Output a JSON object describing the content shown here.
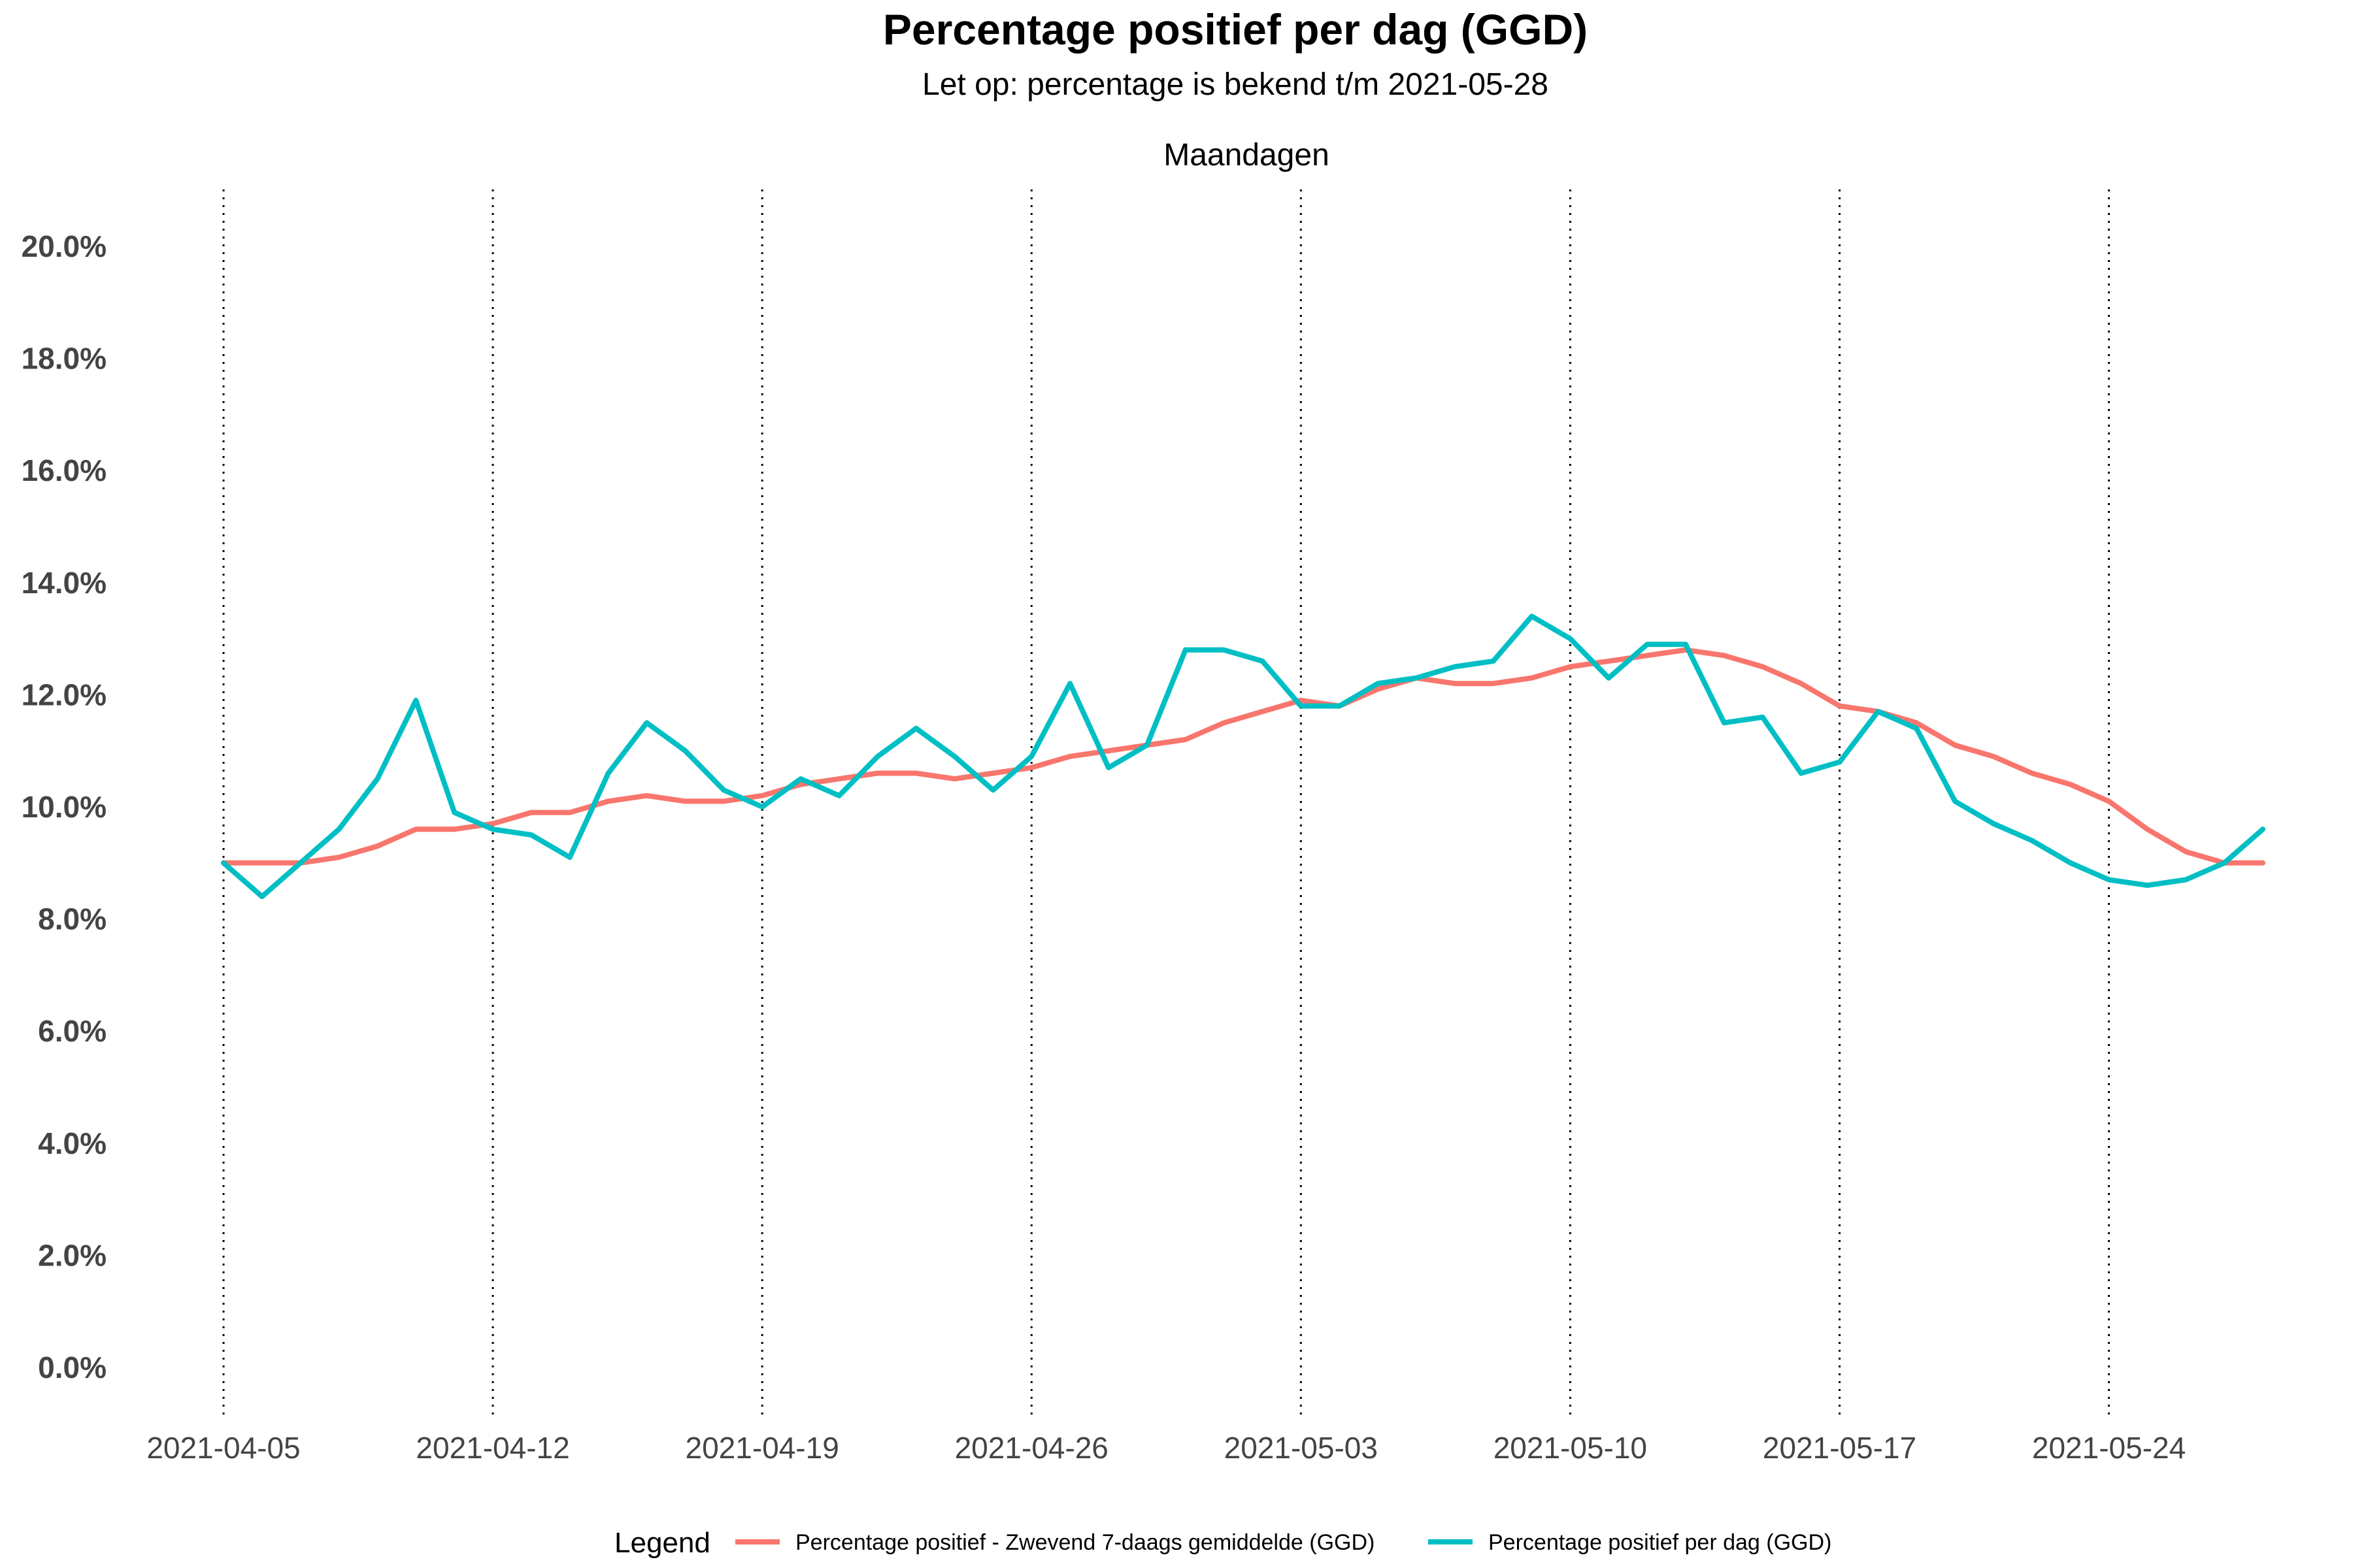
{
  "chart_data": {
    "type": "line",
    "title": "Percentage positief per dag (GGD)",
    "subtitle": "Let op: percentage is bekend t/m 2021-05-28",
    "facet_label": "Maandagen",
    "xlabel": "",
    "ylabel": "",
    "ylim": [
      -1,
      21
    ],
    "y_ticks": [
      "0.0%",
      "2.0%",
      "4.0%",
      "6.0%",
      "8.0%",
      "10.0%",
      "12.0%",
      "14.0%",
      "16.0%",
      "18.0%",
      "20.0%"
    ],
    "y_tick_values": [
      0,
      2,
      4,
      6,
      8,
      10,
      12,
      14,
      16,
      18,
      20
    ],
    "x_start": "2021-04-05",
    "x_end": "2021-05-28",
    "x_ticks": [
      "2021-04-05",
      "2021-04-12",
      "2021-04-19",
      "2021-04-26",
      "2021-05-03",
      "2021-05-10",
      "2021-05-17",
      "2021-05-24"
    ],
    "vlines": [
      "2021-04-05",
      "2021-04-12",
      "2021-04-19",
      "2021-04-26",
      "2021-05-03",
      "2021-05-10",
      "2021-05-17",
      "2021-05-24"
    ],
    "grid": false,
    "legend": {
      "title": "Legend",
      "position": "bottom"
    },
    "series": [
      {
        "name": "Percentage positief - Zwevend 7-daags gemiddelde (GGD)",
        "color": "#F8766D",
        "values": [
          9.0,
          9.0,
          9.0,
          9.1,
          9.3,
          9.6,
          9.6,
          9.7,
          9.9,
          9.9,
          10.1,
          10.2,
          10.1,
          10.1,
          10.2,
          10.4,
          10.5,
          10.6,
          10.6,
          10.5,
          10.6,
          10.7,
          10.9,
          11.0,
          11.1,
          11.2,
          11.5,
          11.7,
          11.9,
          11.8,
          12.1,
          12.3,
          12.2,
          12.2,
          12.3,
          12.5,
          12.6,
          12.7,
          12.8,
          12.7,
          12.5,
          12.2,
          11.8,
          11.7,
          11.5,
          11.1,
          10.9,
          10.6,
          10.4,
          10.1,
          9.6,
          9.2,
          9.0,
          9.0
        ]
      },
      {
        "name": "Percentage positief per dag (GGD)",
        "color": "#00BFC4",
        "values": [
          9.0,
          8.4,
          9.0,
          9.6,
          10.5,
          11.9,
          9.9,
          9.6,
          9.5,
          9.1,
          10.6,
          11.5,
          11.0,
          10.3,
          10.0,
          10.5,
          10.2,
          10.9,
          11.4,
          10.9,
          10.3,
          10.9,
          12.2,
          10.7,
          11.1,
          12.8,
          12.8,
          12.6,
          11.8,
          11.8,
          12.2,
          12.3,
          12.5,
          12.6,
          13.4,
          13.0,
          12.3,
          12.9,
          12.9,
          11.5,
          11.6,
          10.6,
          10.8,
          11.7,
          11.4,
          10.1,
          9.7,
          9.4,
          9.0,
          8.7,
          8.6,
          8.7,
          9.0,
          9.6
        ]
      }
    ]
  }
}
